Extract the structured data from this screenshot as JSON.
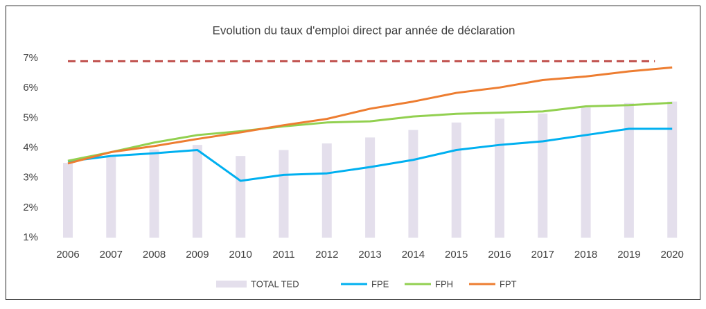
{
  "chart_data": {
    "type": "bar_line",
    "title": "Evolution du taux d'emploi direct par année de déclaration",
    "categories": [
      "2006",
      "2007",
      "2008",
      "2009",
      "2010",
      "2011",
      "2012",
      "2013",
      "2014",
      "2015",
      "2016",
      "2017",
      "2018",
      "2019",
      "2020"
    ],
    "series": [
      {
        "name": "TOTAL TED",
        "kind": "bar",
        "color": "#e4dfec",
        "values": [
          3.5,
          3.75,
          3.95,
          4.1,
          3.73,
          3.93,
          4.15,
          4.35,
          4.6,
          4.85,
          4.98,
          5.15,
          5.35,
          5.5,
          5.55
        ]
      },
      {
        "name": "FPE",
        "kind": "line",
        "color": "#00b0f0",
        "values": [
          3.55,
          3.73,
          3.82,
          3.93,
          2.9,
          3.1,
          3.15,
          3.36,
          3.6,
          3.93,
          4.1,
          4.22,
          4.43,
          4.64,
          4.64
        ]
      },
      {
        "name": "FPH",
        "kind": "line",
        "color": "#92d050",
        "values": [
          3.57,
          3.86,
          4.18,
          4.43,
          4.56,
          4.72,
          4.85,
          4.89,
          5.05,
          5.14,
          5.18,
          5.22,
          5.39,
          5.43,
          5.51
        ]
      },
      {
        "name": "FPT",
        "kind": "line",
        "color": "#ed7d31",
        "values": [
          3.48,
          3.86,
          4.06,
          4.3,
          4.52,
          4.76,
          4.97,
          5.31,
          5.55,
          5.84,
          6.02,
          6.27,
          6.39,
          6.56,
          6.69
        ]
      }
    ],
    "reference_line": {
      "value": 6.9,
      "color": "#c0504d",
      "dashed": true
    },
    "ylim": [
      1,
      7
    ],
    "yticks": [
      {
        "value": 1,
        "label": "1%"
      },
      {
        "value": 2,
        "label": "2%"
      },
      {
        "value": 3,
        "label": "3%"
      },
      {
        "value": 4,
        "label": "4%"
      },
      {
        "value": 5,
        "label": "5%"
      },
      {
        "value": 6,
        "label": "6%"
      },
      {
        "value": 7,
        "label": "7%"
      }
    ],
    "grid": false,
    "legend": "bottom"
  }
}
